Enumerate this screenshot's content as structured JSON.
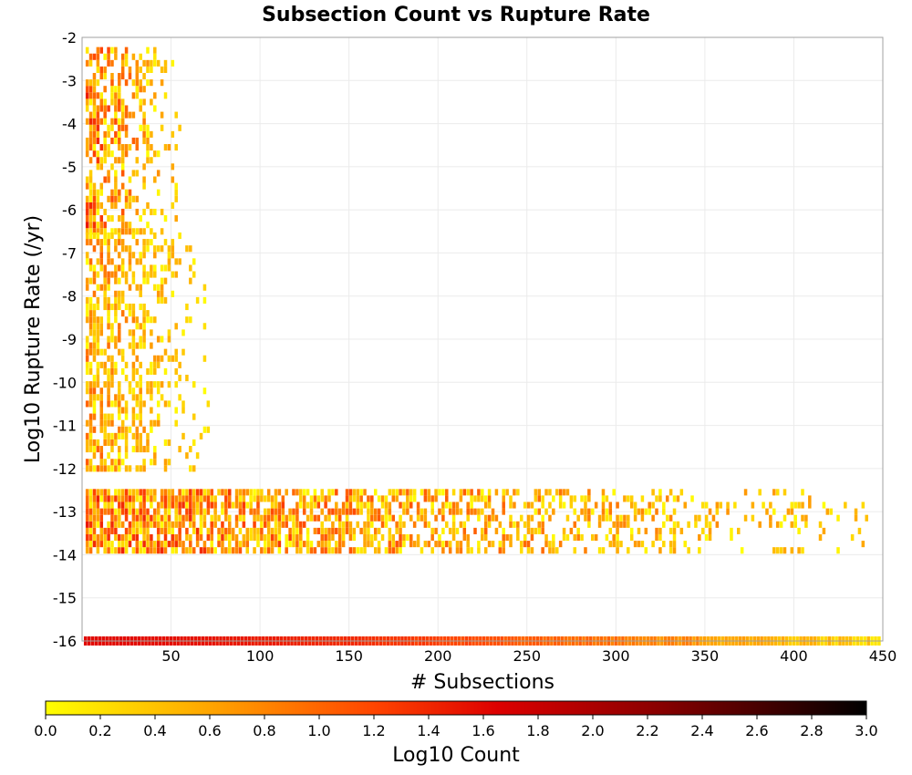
{
  "chart_data": {
    "type": "heatmap",
    "title": "Subsection Count vs Rupture Rate",
    "xlabel": "# Subsections",
    "ylabel": "Log10 Rupture Rate (/yr)",
    "xlim": [
      0,
      450
    ],
    "ylim": [
      -16,
      -2
    ],
    "x_ticks": [
      "50",
      "100",
      "150",
      "200",
      "250",
      "300",
      "350",
      "400",
      "450"
    ],
    "y_ticks": [
      "-2",
      "-3",
      "-4",
      "-5",
      "-6",
      "-7",
      "-8",
      "-9",
      "-10",
      "-11",
      "-12",
      "-13",
      "-14",
      "-15",
      "-16"
    ],
    "grid": true,
    "bin_width_subsections": 2,
    "colorbar": {
      "label": "Log10 Count",
      "range": [
        0.0,
        3.0
      ],
      "ticks": [
        "0.0",
        "0.2",
        "0.4",
        "0.6",
        "0.8",
        "1.0",
        "1.2",
        "1.4",
        "1.6",
        "1.8",
        "2.0",
        "2.2",
        "2.4",
        "2.6",
        "2.8",
        "3.0"
      ],
      "colors": [
        "#ffff00",
        "#ffa500",
        "#ff4500",
        "#dd0000",
        "#880000",
        "#000000"
      ],
      "orientation": "horizontal",
      "position": "bottom"
    },
    "regions": [
      {
        "name": "high-rate cluster",
        "x": [
          2,
          55
        ],
        "y": [
          -6.5,
          -2.2
        ],
        "log10_count": [
          0.0,
          1.5
        ]
      },
      {
        "name": "mid-rate cluster",
        "x": [
          2,
          70
        ],
        "y": [
          -12,
          -6.5
        ],
        "log10_count": [
          0.0,
          1.1
        ]
      },
      {
        "name": "low-rate band",
        "x": [
          2,
          440
        ],
        "y": [
          -13.9,
          -12.5
        ],
        "log10_count": [
          0.0,
          1.5
        ]
      },
      {
        "name": "zero-rate row",
        "x": [
          1,
          448
        ],
        "y": [
          -16,
          -16
        ],
        "log10_count": [
          0.0,
          1.6
        ]
      }
    ]
  }
}
